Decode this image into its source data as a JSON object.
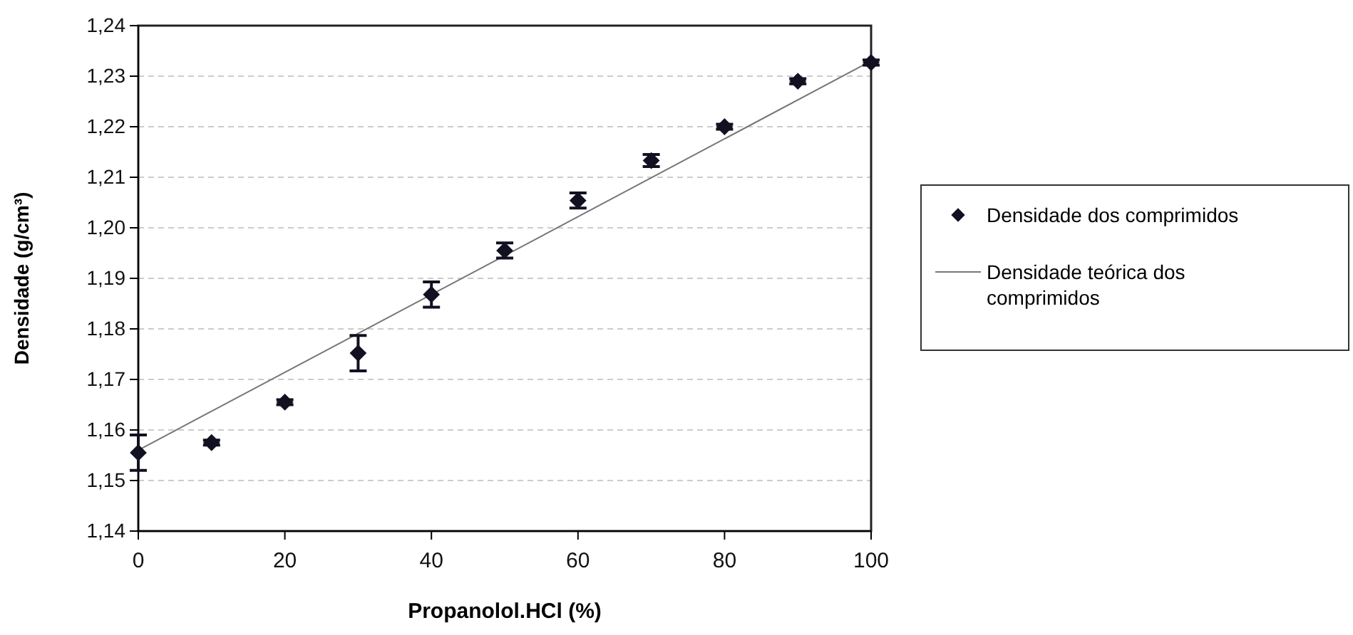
{
  "chart_data": {
    "type": "scatter",
    "xlabel": "Propanolol.HCl (%)",
    "ylabel": "Densidade (g/cm³)",
    "x": [
      0,
      10,
      20,
      30,
      40,
      50,
      60,
      70,
      80,
      90,
      100
    ],
    "series": [
      {
        "name": "Densidade dos comprimidos",
        "type": "scatter",
        "color": "#111122",
        "marker": "diamond",
        "values": [
          1.1555,
          1.1575,
          1.1655,
          1.1752,
          1.1868,
          1.1955,
          1.2054,
          1.2133,
          1.22,
          1.229,
          1.2327
        ],
        "errors": [
          0.0035,
          0.0005,
          0.0005,
          0.0035,
          0.0025,
          0.0015,
          0.0015,
          0.0012,
          0.0005,
          0.0005,
          0.0005
        ]
      },
      {
        "name": "Densidade teórica dos comprimidos",
        "type": "line",
        "color": "#777777",
        "marker": "none",
        "x": [
          0,
          100
        ],
        "values": [
          1.156,
          1.233
        ]
      }
    ],
    "xlim": [
      0,
      100
    ],
    "xticks": [
      0,
      20,
      40,
      60,
      80,
      100
    ],
    "ylim": [
      1.14,
      1.24
    ],
    "yticks": [
      {
        "value": 1.14,
        "label": "1,14"
      },
      {
        "value": 1.15,
        "label": "1,15"
      },
      {
        "value": 1.16,
        "label": "1,16"
      },
      {
        "value": 1.17,
        "label": "1,17"
      },
      {
        "value": 1.18,
        "label": "1,18"
      },
      {
        "value": 1.19,
        "label": "1,19"
      },
      {
        "value": 1.2,
        "label": "1,20"
      },
      {
        "value": 1.21,
        "label": "1,21"
      },
      {
        "value": 1.22,
        "label": "1,22"
      },
      {
        "value": 1.23,
        "label": "1,23"
      },
      {
        "value": 1.24,
        "label": "1,24"
      }
    ],
    "grid": "y",
    "legend": "right"
  }
}
